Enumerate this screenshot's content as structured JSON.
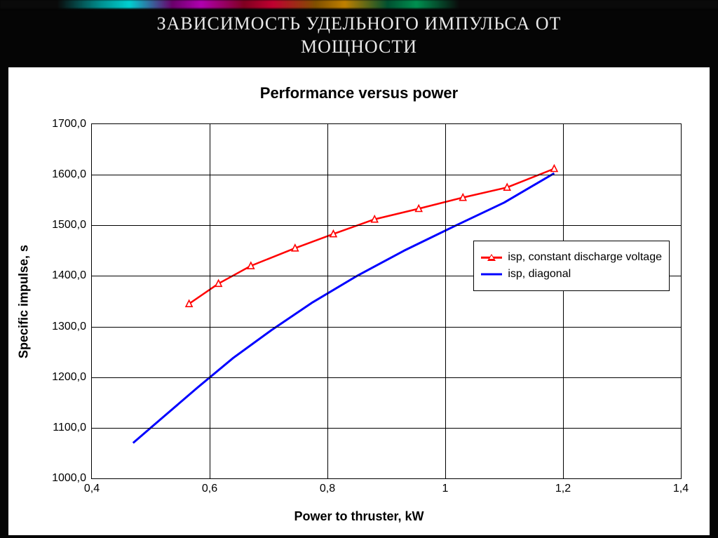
{
  "slide": {
    "title_line1": "ЗАВИСИМОСТЬ УДЕЛЬНОГО ИМПУЛЬСА ОТ",
    "title_line2": "МОЩНОСТИ",
    "title_color": "#e8e8e8",
    "title_fontsize_pt": 20,
    "background_color": "#050505",
    "stripe_colors": [
      "#008f8f",
      "#00d0d0",
      "#6a006a",
      "#b000b0",
      "#800020",
      "#c00030",
      "#805000",
      "#c08000",
      "#005030",
      "#009050"
    ]
  },
  "chart": {
    "type": "line",
    "title": "Performance versus power",
    "title_fontsize_pt": 16,
    "title_fontweight": "bold",
    "panel_background": "#ffffff",
    "plot_background": "#ffffff",
    "axis_line_color": "#000000",
    "grid_color": "#000000",
    "grid_on": true,
    "x_axis": {
      "label": "Power to thruster, kW",
      "label_fontsize_pt": 14,
      "label_fontweight": "bold",
      "xlim": [
        0.4,
        1.4
      ],
      "ticks": [
        0.4,
        0.6,
        0.8,
        1.0,
        1.2,
        1.4
      ],
      "tick_labels": [
        "0,4",
        "0,6",
        "0,8",
        "1",
        "1,2",
        "1,4"
      ],
      "tick_fontsize_pt": 12,
      "scale": "linear"
    },
    "y_axis": {
      "label": "Specific impulse, s",
      "label_fontsize_pt": 14,
      "label_fontweight": "bold",
      "ylim": [
        1000.0,
        1700.0
      ],
      "ticks": [
        1000.0,
        1100.0,
        1200.0,
        1300.0,
        1400.0,
        1500.0,
        1600.0,
        1700.0
      ],
      "tick_labels": [
        "1000,0",
        "1100,0",
        "1200,0",
        "1300,0",
        "1400,0",
        "1500,0",
        "1600,0",
        "1700,0"
      ],
      "tick_fontsize_pt": 12,
      "scale": "linear"
    },
    "series": [
      {
        "name": "isp, constant discharge voltage",
        "color": "#ff0000",
        "line_width": 2.5,
        "marker": "triangle",
        "marker_edge_color": "#ff0000",
        "marker_fill_color": "#ffffff",
        "marker_size": 9,
        "x": [
          0.565,
          0.615,
          0.67,
          0.745,
          0.81,
          0.88,
          0.955,
          1.03,
          1.105,
          1.185
        ],
        "y": [
          1345,
          1385,
          1420,
          1455,
          1483,
          1512,
          1533,
          1555,
          1575,
          1612
        ]
      },
      {
        "name": "isp, diagonal",
        "color": "#0000ff",
        "line_width": 3,
        "marker": "none",
        "x": [
          0.47,
          0.52,
          0.58,
          0.64,
          0.705,
          0.775,
          0.85,
          0.93,
          1.015,
          1.1,
          1.185
        ],
        "y": [
          1070,
          1120,
          1180,
          1238,
          1293,
          1348,
          1400,
          1450,
          1498,
          1545,
          1603
        ]
      }
    ],
    "legend": {
      "position": "right-middle",
      "border_color": "#000000",
      "background": "#ffffff",
      "fontsize_pt": 12,
      "items": [
        {
          "label": "isp, constant discharge voltage",
          "series_index": 0
        },
        {
          "label": "isp, diagonal",
          "series_index": 1
        }
      ]
    }
  }
}
